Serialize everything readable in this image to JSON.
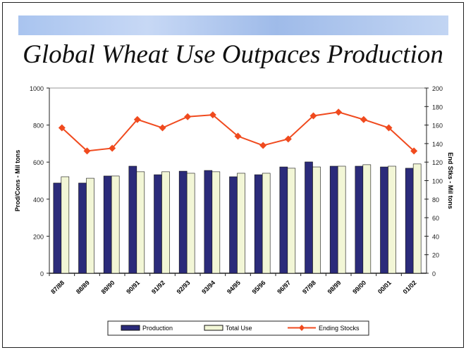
{
  "chart_data": {
    "type": "bar",
    "title": "Global Wheat Use Outpaces Production",
    "ylabel": "Prod/Cons - Mil tons",
    "y2label": "End Stks - Mil tons",
    "ylim": [
      0,
      1000
    ],
    "y2lim": [
      0,
      200
    ],
    "yticks": [
      "0",
      "200",
      "400",
      "600",
      "800",
      "1000"
    ],
    "y2ticks": [
      "0",
      "20",
      "40",
      "60",
      "80",
      "100",
      "120",
      "140",
      "160",
      "180",
      "200"
    ],
    "categories": [
      "87/88",
      "88/89",
      "89/90",
      "90/91",
      "91/92",
      "92/93",
      "93/94",
      "94/95",
      "95/96",
      "96/97",
      "97/98",
      "98/99",
      "99/00",
      "00/01",
      "01/02"
    ],
    "series": [
      {
        "name": "Production",
        "type": "bar",
        "axis": "left",
        "color": "#2b2b7a",
        "values": [
          487,
          487,
          525,
          578,
          532,
          551,
          555,
          521,
          532,
          574,
          601,
          578,
          578,
          574,
          567
        ]
      },
      {
        "name": "Total Use",
        "type": "bar",
        "axis": "left",
        "color": "#f2f6d6",
        "values": [
          521,
          513,
          525,
          548,
          548,
          540,
          548,
          540,
          540,
          567,
          574,
          578,
          586,
          578,
          590
        ]
      },
      {
        "name": "Ending Stocks",
        "type": "line",
        "axis": "right",
        "color": "#f04a1e",
        "values": [
          157,
          132,
          135,
          166,
          157,
          169,
          171,
          148,
          138,
          145,
          170,
          174,
          166,
          157,
          132
        ]
      }
    ],
    "legend_position": "bottom"
  }
}
